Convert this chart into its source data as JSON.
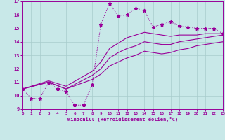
{
  "bg_color": "#c8e8e8",
  "grid_color": "#a8cccc",
  "line_color": "#990099",
  "xlim": [
    0,
    23
  ],
  "ylim": [
    9,
    17
  ],
  "xticks": [
    0,
    1,
    2,
    3,
    4,
    5,
    6,
    7,
    8,
    9,
    10,
    11,
    12,
    13,
    14,
    15,
    16,
    17,
    18,
    19,
    20,
    21,
    22,
    23
  ],
  "yticks": [
    9,
    10,
    11,
    12,
    13,
    14,
    15,
    16,
    17
  ],
  "xlabel": "Windchill (Refroidissement éolien,°C)",
  "s1_x": [
    0,
    1,
    2,
    3,
    4,
    5,
    6,
    7,
    8,
    9,
    10,
    11,
    12,
    13,
    14,
    15,
    16,
    17,
    18,
    19,
    20,
    21,
    22,
    23
  ],
  "s1_y": [
    10.5,
    9.8,
    9.8,
    11.0,
    10.5,
    10.3,
    9.3,
    9.3,
    10.8,
    15.3,
    16.85,
    15.9,
    16.0,
    16.5,
    16.3,
    15.1,
    15.3,
    15.5,
    15.2,
    15.1,
    15.0,
    15.0,
    15.0,
    14.6
  ],
  "s2_x": [
    0,
    3,
    5,
    8,
    9,
    10,
    11,
    12,
    13,
    14,
    15,
    16,
    17,
    18,
    19,
    20,
    21,
    22,
    23
  ],
  "s2_y": [
    10.5,
    11.1,
    10.7,
    11.8,
    12.5,
    13.5,
    13.9,
    14.3,
    14.5,
    14.7,
    14.6,
    14.5,
    14.4,
    14.5,
    14.5,
    14.5,
    14.6,
    14.6,
    14.6
  ],
  "s3_x": [
    0,
    3,
    5,
    8,
    9,
    10,
    11,
    12,
    13,
    14,
    15,
    16,
    17,
    18,
    19,
    20,
    21,
    22,
    23
  ],
  "s3_y": [
    10.5,
    11.0,
    10.5,
    11.5,
    12.0,
    12.8,
    13.2,
    13.5,
    13.7,
    14.0,
    13.9,
    13.8,
    13.8,
    14.0,
    14.1,
    14.2,
    14.3,
    14.4,
    14.5
  ],
  "s4_x": [
    0,
    3,
    5,
    8,
    9,
    10,
    11,
    12,
    13,
    14,
    15,
    16,
    17,
    18,
    19,
    20,
    21,
    22,
    23
  ],
  "s4_y": [
    10.5,
    11.0,
    10.5,
    11.2,
    11.6,
    12.2,
    12.5,
    12.8,
    13.0,
    13.3,
    13.2,
    13.1,
    13.2,
    13.4,
    13.5,
    13.7,
    13.8,
    13.9,
    14.0
  ]
}
